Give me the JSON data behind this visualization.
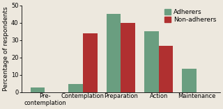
{
  "categories": [
    "Pre-\ncontemplation",
    "Contemplation",
    "Preparation",
    "Action",
    "Maintenance"
  ],
  "adherers": [
    2.5,
    4.5,
    45,
    35,
    13.5
  ],
  "non_adherers": [
    0,
    34,
    40,
    26.5,
    0
  ],
  "adherers_color": "#6a9e80",
  "non_adherers_color": "#b03030",
  "ylabel": "Percentage of respondents",
  "ylim": [
    0,
    50
  ],
  "yticks": [
    0,
    10,
    20,
    30,
    40,
    50
  ],
  "legend_adherers": "Adherers",
  "legend_non_adherers": "Non-adherers",
  "bar_width": 0.38,
  "background_color": "#ede8de",
  "ylabel_fontsize": 6.5,
  "tick_fontsize": 6.0,
  "legend_fontsize": 6.5
}
